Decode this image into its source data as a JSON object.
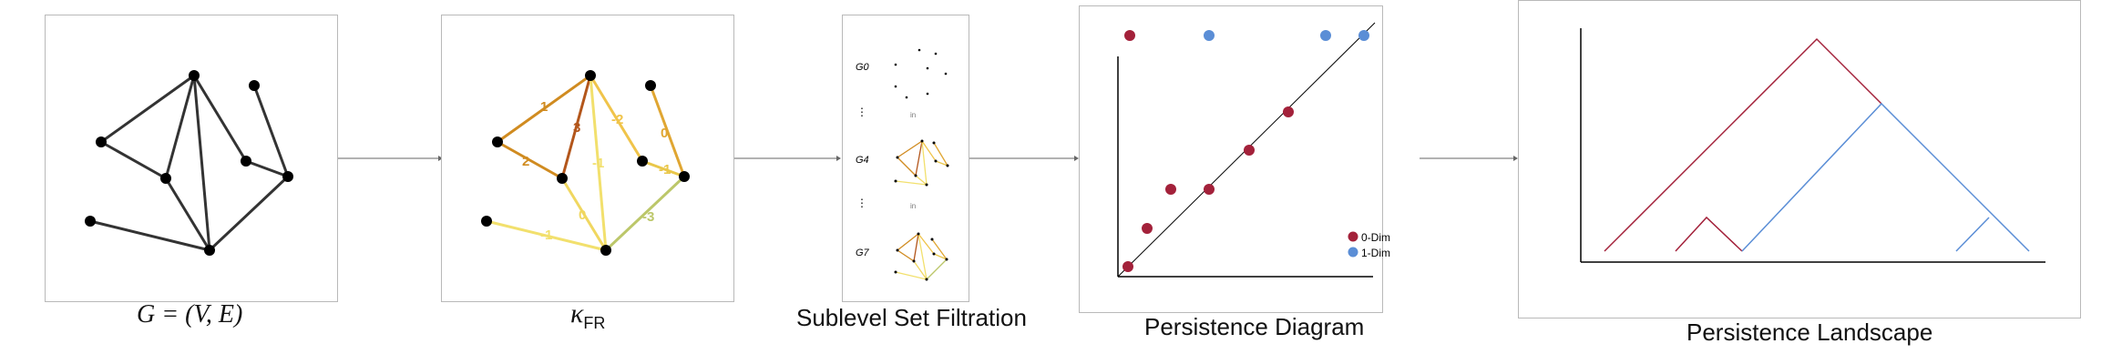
{
  "captions": {
    "graph": "G = (V, E)",
    "curvature_symbol": "κ",
    "curvature_sub": "FR",
    "filtration": "Sublevel Set Filtration",
    "diagram": "Persistence Diagram",
    "landscape": "Persistence Landscape"
  },
  "edge_labels": [
    "1",
    "2",
    "3",
    "-2",
    "0",
    "-1",
    "-1",
    "0",
    "-3",
    "-1"
  ],
  "filtration_labels": {
    "g0": "G0",
    "g4": "G4",
    "g7": "G7",
    "dots": "⋮",
    "sub": "in"
  },
  "legend": {
    "dim0": "0-Dim",
    "dim1": "1-Dim"
  },
  "colors": {
    "dim0": "#a3213a",
    "dim1": "#5b8ed6",
    "panel_border": "#b9b9b9",
    "landscape_red": "#a3213a",
    "landscape_blue": "#5b8ed6"
  }
}
